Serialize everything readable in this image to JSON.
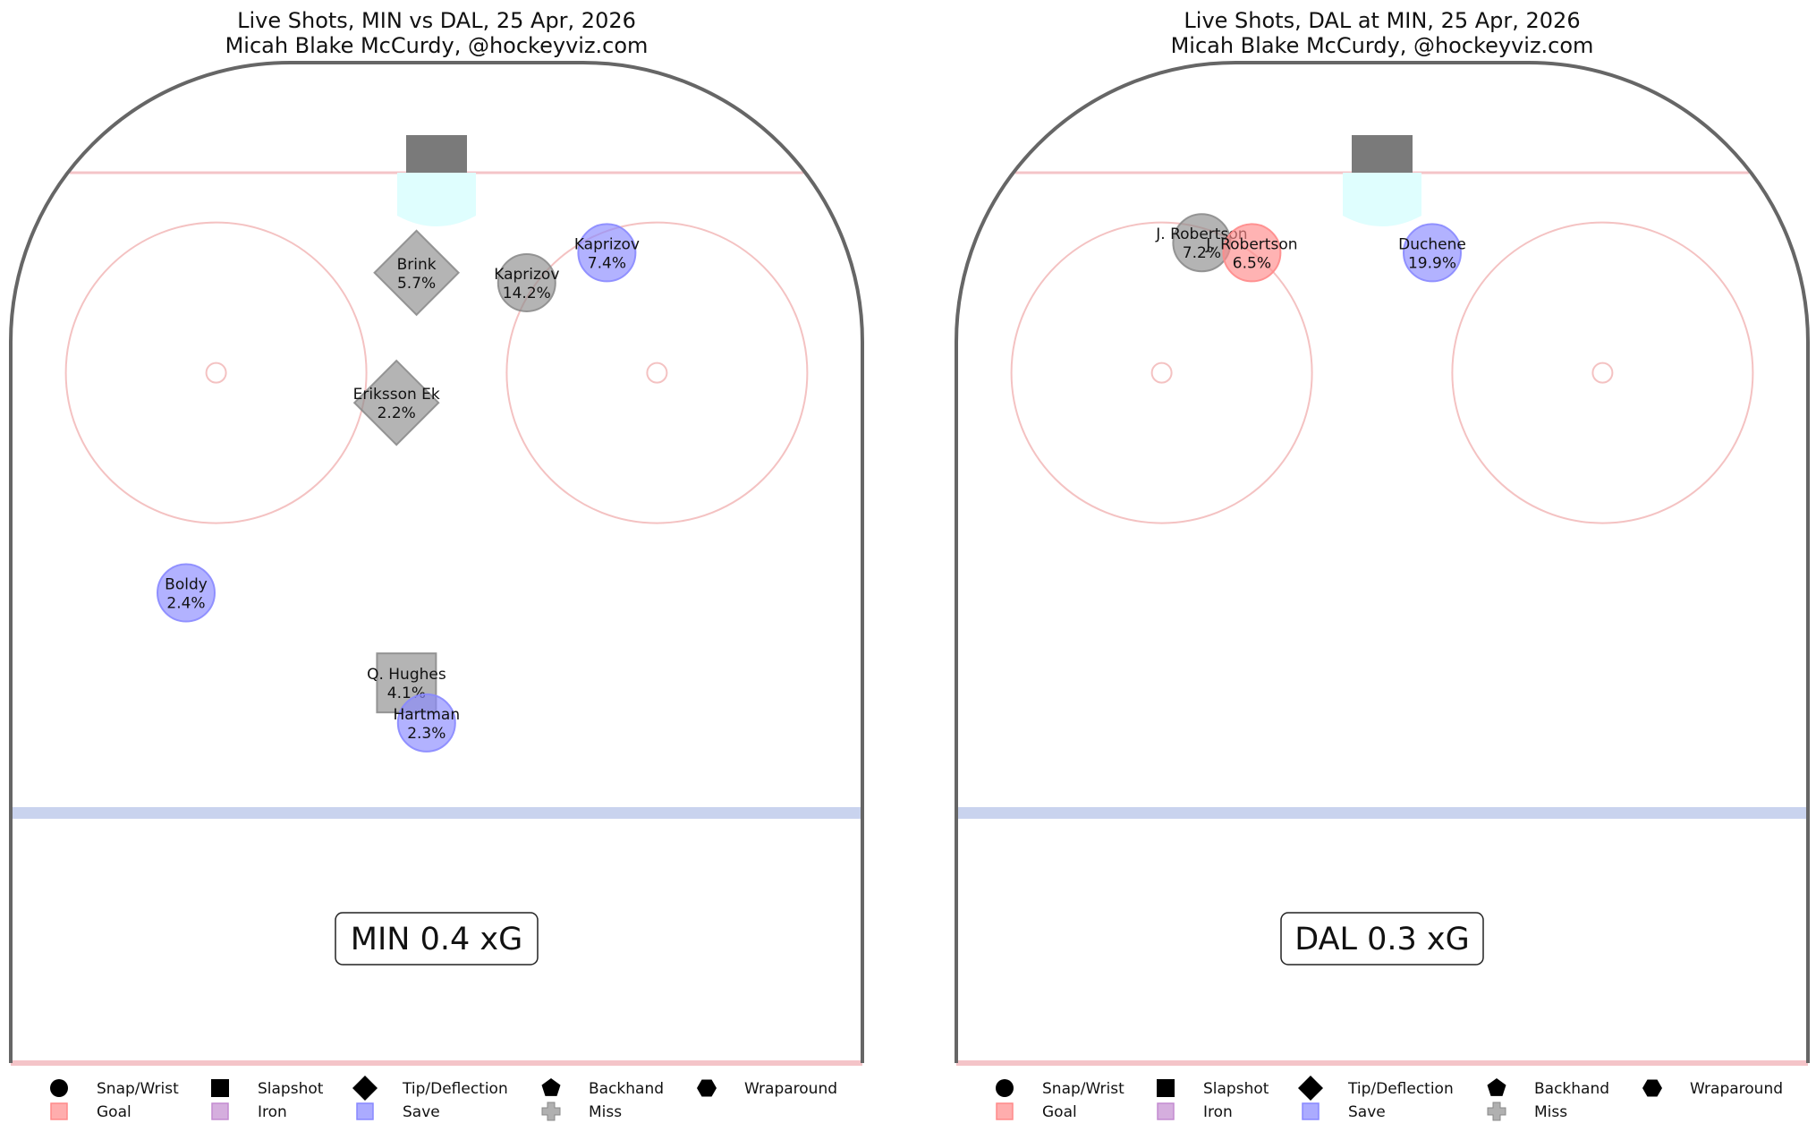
{
  "chart_data": [
    {
      "type": "scatter",
      "title": "Live Shots, MIN vs DAL, 25 Apr, 2026",
      "subtitle": "Micah Blake McCurdy, @hockeyviz.com",
      "team_xg_label": "MIN 0.4 xG",
      "shots": [
        {
          "player": "Brink",
          "xg_label": "5.7%",
          "xg": 5.7,
          "shot_type": "Tip/Deflection",
          "result": "Miss",
          "x": -2,
          "y": 79
        },
        {
          "player": "Kaprizov",
          "xg_label": "14.2%",
          "xg": 14.2,
          "shot_type": "Snap/Wrist",
          "result": "Miss",
          "x": 9,
          "y": 78
        },
        {
          "player": "Kaprizov",
          "xg_label": "7.4%",
          "xg": 7.4,
          "shot_type": "Snap/Wrist",
          "result": "Save",
          "x": 17,
          "y": 81
        },
        {
          "player": "Eriksson Ek",
          "xg_label": "2.2%",
          "xg": 2.2,
          "shot_type": "Tip/Deflection",
          "result": "Miss",
          "x": -4,
          "y": 66
        },
        {
          "player": "Boldy",
          "xg_label": "2.4%",
          "xg": 2.4,
          "shot_type": "Snap/Wrist",
          "result": "Save",
          "x": -25,
          "y": 47
        },
        {
          "player": "Q. Hughes",
          "xg_label": "4.1%",
          "xg": 4.1,
          "shot_type": "Slapshot",
          "result": "Miss",
          "x": -3,
          "y": 38
        },
        {
          "player": "Hartman",
          "xg_label": "2.3%",
          "xg": 2.3,
          "shot_type": "Snap/Wrist",
          "result": "Save",
          "x": -1,
          "y": 34
        }
      ]
    },
    {
      "type": "scatter",
      "title": "Live Shots, DAL at MIN, 25 Apr, 2026",
      "subtitle": "Micah Blake McCurdy, @hockeyviz.com",
      "team_xg_label": "DAL 0.3 xG",
      "shots": [
        {
          "player": "J. Robertson",
          "xg_label": "7.2%",
          "xg": 7.2,
          "shot_type": "Snap/Wrist",
          "result": "Miss",
          "x": -18,
          "y": 82
        },
        {
          "player": "J. Robertson",
          "xg_label": "6.5%",
          "xg": 6.5,
          "shot_type": "Snap/Wrist",
          "result": "Goal",
          "x": -13,
          "y": 81
        },
        {
          "player": "Duchene",
          "xg_label": "19.9%",
          "xg": 19.9,
          "shot_type": "Snap/Wrist",
          "result": "Save",
          "x": 5,
          "y": 81
        }
      ]
    }
  ],
  "legend": {
    "shot_types": [
      {
        "label": "Snap/Wrist",
        "icon": "circle-icon"
      },
      {
        "label": "Slapshot",
        "icon": "square-icon"
      },
      {
        "label": "Tip/Deflection",
        "icon": "diamond-icon"
      },
      {
        "label": "Backhand",
        "icon": "pentagon-icon"
      },
      {
        "label": "Wraparound",
        "icon": "hexagon-icon"
      }
    ],
    "results": [
      {
        "label": "Goal",
        "color": "#ff8a8a"
      },
      {
        "label": "Iron",
        "color": "#c38bd0"
      },
      {
        "label": "Save",
        "color": "#8888ff"
      },
      {
        "label": "Miss",
        "color": "#909090"
      }
    ]
  },
  "colors": {
    "Goal": "#ff8a8a",
    "Save": "#8888ff",
    "Miss": "#8c8c8c",
    "Iron": "#c38bd0",
    "board": "#666666",
    "goal_line": "#f4c4c8",
    "faceoff": "#f4c2c2",
    "blue_line": "#c9d3ee",
    "crease": "#dffefe",
    "net": "#7a7a7a"
  }
}
